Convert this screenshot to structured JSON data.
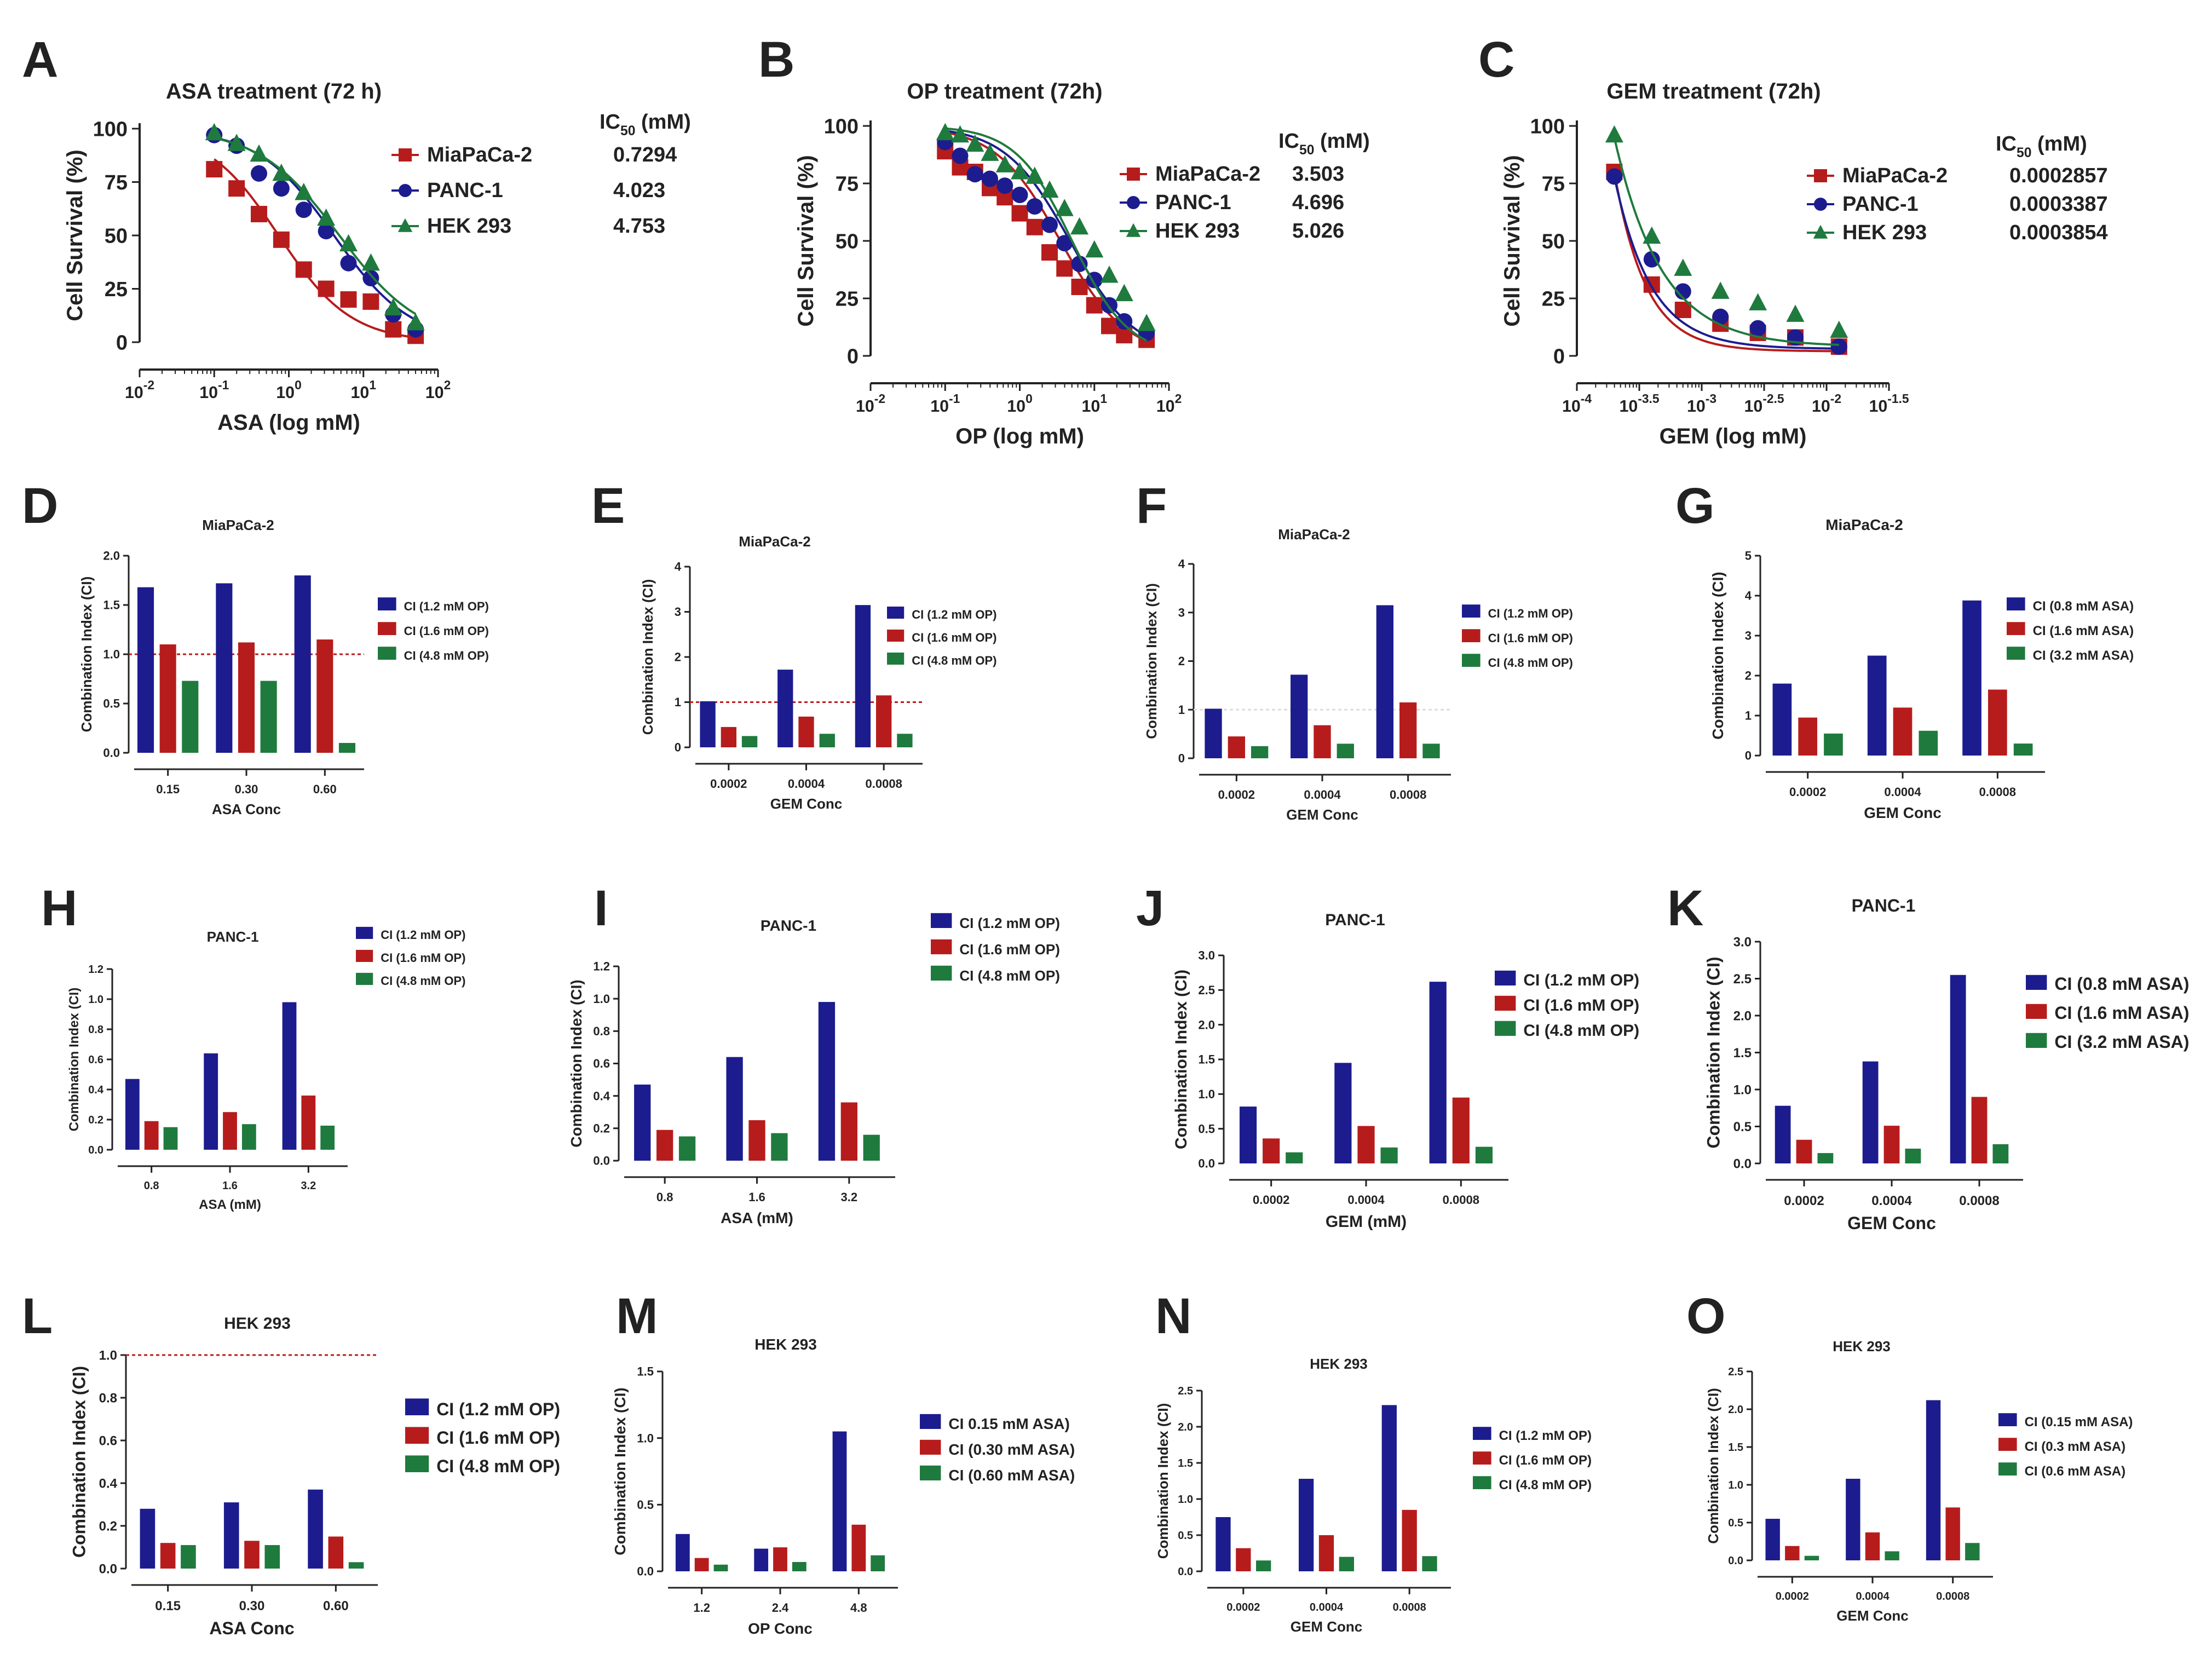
{
  "colors": {
    "red": "#b71c1c",
    "blue": "#1c1c8f",
    "green": "#1f7a3e",
    "refline": "#b71c1c",
    "axis": "#222222"
  },
  "chart_data": [
    {
      "id": "A",
      "panel_label": "A",
      "type": "line",
      "title": "ASA treatment (72 h)",
      "xlabel": "ASA (log mM)",
      "ylabel": "Cell Survival (%)",
      "x_scale": "log10",
      "xlim_log": [
        -2,
        2
      ],
      "x_ticks": [
        {
          "base": "10",
          "exp": "-2"
        },
        {
          "base": "10",
          "exp": "-1"
        },
        {
          "base": "10",
          "exp": "0"
        },
        {
          "base": "10",
          "exp": "1"
        },
        {
          "base": "10",
          "exp": "2"
        }
      ],
      "ylim": [
        0,
        100
      ],
      "y_ticks": [
        "0",
        "25",
        "50",
        "75",
        "100"
      ],
      "ic50_header": "IC",
      "ic50_sub": "50",
      "ic50_unit": " (mM)",
      "series": [
        {
          "name": "MiaPaCa-2",
          "ic50": "0.7294",
          "marker": "square",
          "color": "#b71c1c",
          "x_log": [
            -1,
            -0.7,
            -0.4,
            -0.1,
            0.2,
            0.5,
            0.8,
            1.1,
            1.4,
            1.7
          ],
          "y": [
            81,
            72,
            60,
            48,
            34,
            25,
            20,
            19,
            6,
            3
          ],
          "fit": {
            "ic50_log": -0.137,
            "hill": 0.9
          }
        },
        {
          "name": "PANC-1",
          "ic50": "4.023",
          "marker": "circle",
          "color": "#1c1c8f",
          "x_log": [
            -1,
            -0.7,
            -0.4,
            -0.1,
            0.2,
            0.5,
            0.8,
            1.1,
            1.4,
            1.7
          ],
          "y": [
            97,
            92,
            79,
            72,
            62,
            52,
            37,
            30,
            13,
            6
          ],
          "fit": {
            "ic50_log": 0.605,
            "hill": 0.85
          }
        },
        {
          "name": "HEK 293",
          "ic50": "4.753",
          "marker": "triangle",
          "color": "#1f7a3e",
          "x_log": [
            -1,
            -0.7,
            -0.4,
            -0.1,
            0.2,
            0.5,
            0.8,
            1.1,
            1.4,
            1.7
          ],
          "y": [
            98,
            93,
            88,
            79,
            70,
            58,
            46,
            37,
            16,
            9
          ],
          "fit": {
            "ic50_log": 0.677,
            "hill": 0.8
          }
        }
      ]
    },
    {
      "id": "B",
      "panel_label": "B",
      "type": "line",
      "title": "OP treatment (72h)",
      "xlabel": "OP (log mM)",
      "ylabel": "Cell Survival (%)",
      "x_scale": "log10",
      "xlim_log": [
        -2,
        2
      ],
      "x_ticks": [
        {
          "base": "10",
          "exp": "-2"
        },
        {
          "base": "10",
          "exp": "-1"
        },
        {
          "base": "10",
          "exp": "0"
        },
        {
          "base": "10",
          "exp": "1"
        },
        {
          "base": "10",
          "exp": "2"
        }
      ],
      "ylim": [
        0,
        100
      ],
      "y_ticks": [
        "0",
        "25",
        "50",
        "75",
        "100"
      ],
      "ic50_header": "IC",
      "ic50_sub": "50",
      "ic50_unit": " (mM)",
      "series": [
        {
          "name": "MiaPaCa-2",
          "ic50": "3.503",
          "marker": "square",
          "color": "#b71c1c",
          "x_log": [
            -1,
            -0.8,
            -0.6,
            -0.4,
            -0.2,
            0,
            0.2,
            0.4,
            0.6,
            0.8,
            1,
            1.2,
            1.4,
            1.7
          ],
          "y": [
            89,
            82,
            80,
            73,
            69,
            62,
            56,
            45,
            38,
            30,
            22,
            13,
            9,
            7
          ],
          "fit": {
            "ic50_log": 0.544,
            "hill": 1.0
          }
        },
        {
          "name": "PANC-1",
          "ic50": "4.696",
          "marker": "circle",
          "color": "#1c1c8f",
          "x_log": [
            -1,
            -0.8,
            -0.6,
            -0.4,
            -0.2,
            0,
            0.2,
            0.4,
            0.6,
            0.8,
            1,
            1.2,
            1.4,
            1.7
          ],
          "y": [
            93,
            87,
            79,
            77,
            74,
            70,
            65,
            57,
            49,
            40,
            33,
            22,
            15,
            10
          ],
          "fit": {
            "ic50_log": 0.672,
            "hill": 1.0
          }
        },
        {
          "name": "HEK 293",
          "ic50": "5.026",
          "marker": "triangle",
          "color": "#1f7a3e",
          "x_log": [
            -1,
            -0.8,
            -0.6,
            -0.4,
            -0.2,
            0,
            0.2,
            0.4,
            0.6,
            0.8,
            1,
            1.2,
            1.4,
            1.7
          ],
          "y": [
            97,
            96,
            92,
            88,
            83,
            80,
            78,
            72,
            64,
            56,
            46,
            35,
            27,
            14
          ],
          "fit": {
            "ic50_log": 0.701,
            "hill": 1.15
          }
        }
      ]
    },
    {
      "id": "C",
      "panel_label": "C",
      "type": "line",
      "title": "GEM treatment (72h)",
      "xlabel": "GEM (log mM)",
      "ylabel": "Cell Survival (%)",
      "x_scale": "log10",
      "xlim_log": [
        -4,
        -1.5
      ],
      "x_ticks": [
        {
          "base": "10",
          "exp": "-4"
        },
        {
          "base": "10",
          "exp": "-3.5"
        },
        {
          "base": "10",
          "exp": "-3"
        },
        {
          "base": "10",
          "exp": "-2.5"
        },
        {
          "base": "10",
          "exp": "-2"
        },
        {
          "base": "10",
          "exp": "-1.5"
        }
      ],
      "ylim": [
        0,
        100
      ],
      "y_ticks": [
        "0",
        "25",
        "50",
        "75",
        "100"
      ],
      "ic50_header": "IC",
      "ic50_sub": "50",
      "ic50_unit": " (mM)",
      "series": [
        {
          "name": "MiaPaCa-2",
          "ic50": "0.0002857",
          "marker": "square",
          "color": "#b71c1c",
          "x_log": [
            -3.7,
            -3.4,
            -3.15,
            -2.85,
            -2.55,
            -2.25,
            -1.9
          ],
          "y": [
            80,
            31,
            20,
            14,
            10,
            8,
            4
          ],
          "fit": {
            "type": "exp",
            "y0": 80,
            "plateau": 2,
            "k": 1.72,
            "x0": -3.7
          }
        },
        {
          "name": "PANC-1",
          "ic50": "0.0003387",
          "marker": "circle",
          "color": "#1c1c8f",
          "x_log": [
            -3.7,
            -3.4,
            -3.15,
            -2.85,
            -2.55,
            -2.25,
            -1.9
          ],
          "y": [
            78,
            42,
            28,
            17,
            12,
            8,
            4
          ],
          "fit": {
            "type": "exp",
            "y0": 78,
            "plateau": 3,
            "k": 1.48,
            "x0": -3.7
          }
        },
        {
          "name": "HEK 293",
          "ic50": "0.0003854",
          "marker": "triangle",
          "color": "#1f7a3e",
          "x_log": [
            -3.7,
            -3.4,
            -3.15,
            -2.85,
            -2.55,
            -2.25,
            -1.9
          ],
          "y": [
            96,
            52,
            38,
            28,
            23,
            18,
            11
          ],
          "fit": {
            "type": "exp",
            "y0": 95,
            "plateau": 4,
            "k": 1.15,
            "x0": -3.7
          }
        }
      ]
    },
    {
      "id": "D",
      "panel_label": "D",
      "type": "bar",
      "title": "MiaPaCa-2",
      "xlabel": "ASA Conc",
      "ylabel": "Combination Index (CI)",
      "categories": [
        "0.15",
        "0.30",
        "0.60"
      ],
      "ylim": [
        0,
        2
      ],
      "y_ticks": [
        "0.0",
        "0.5",
        "1.0",
        "1.5",
        "2.0"
      ],
      "refline": 1.0,
      "series": [
        {
          "name": "CI (1.2 mM OP)",
          "values": [
            1.68,
            1.72,
            1.8
          ]
        },
        {
          "name": "CI (1.6 mM OP)",
          "values": [
            1.1,
            1.12,
            1.15
          ]
        },
        {
          "name": "CI (4.8 mM OP)",
          "values": [
            0.73,
            0.73,
            0.1
          ]
        }
      ]
    },
    {
      "id": "E",
      "panel_label": "E",
      "type": "bar",
      "title": "MiaPaCa-2",
      "xlabel": "GEM Conc",
      "ylabel": "Combination Index (CI)",
      "categories": [
        "0.0002",
        "0.0004",
        "0.0008"
      ],
      "ylim": [
        0,
        4
      ],
      "y_ticks": [
        "0",
        "1",
        "2",
        "3",
        "4"
      ],
      "refline": 1.0,
      "series": [
        {
          "name": "CI (1.2 mM OP)",
          "values": [
            1.02,
            1.72,
            3.15
          ]
        },
        {
          "name": "CI (1.6 mM OP)",
          "values": [
            0.45,
            0.68,
            1.15
          ]
        },
        {
          "name": "CI (4.8 mM OP)",
          "values": [
            0.25,
            0.3,
            0.3
          ]
        }
      ]
    },
    {
      "id": "F",
      "panel_label": "F",
      "type": "bar",
      "title": "MiaPaCa-2",
      "xlabel": "GEM Conc",
      "ylabel": "Combination Index (CI)",
      "categories": [
        "0.0002",
        "0.0004",
        "0.0008"
      ],
      "ylim": [
        0,
        4
      ],
      "y_ticks": [
        "0",
        "1",
        "2",
        "3",
        "4"
      ],
      "refline": 1.0,
      "refline_faint": true,
      "series": [
        {
          "name": "CI (1.2 mM OP)",
          "values": [
            1.02,
            1.72,
            3.15
          ]
        },
        {
          "name": "CI (1.6 mM OP)",
          "values": [
            0.45,
            0.68,
            1.15
          ]
        },
        {
          "name": "CI (4.8 mM OP)",
          "values": [
            0.25,
            0.3,
            0.3
          ]
        }
      ]
    },
    {
      "id": "G",
      "panel_label": "G",
      "type": "bar",
      "title": "MiaPaCa-2",
      "xlabel": "GEM Conc",
      "ylabel": "Combination Index (CI)",
      "categories": [
        "0.0002",
        "0.0004",
        "0.0008"
      ],
      "ylim": [
        0,
        5
      ],
      "y_ticks": [
        "0",
        "1",
        "2",
        "3",
        "4",
        "5"
      ],
      "series": [
        {
          "name": "CI (0.8 mM ASA)",
          "values": [
            1.8,
            2.5,
            3.88
          ]
        },
        {
          "name": "CI (1.6 mM ASA)",
          "values": [
            0.95,
            1.2,
            1.65
          ]
        },
        {
          "name": "CI (3.2 mM ASA)",
          "values": [
            0.55,
            0.62,
            0.3
          ]
        }
      ]
    },
    {
      "id": "H",
      "panel_label": "H",
      "type": "bar",
      "title": "PANC-1",
      "xlabel": "ASA (mM)",
      "ylabel": "Combination Index (CI)",
      "categories": [
        "0.8",
        "1.6",
        "3.2"
      ],
      "ylim": [
        0,
        1.2
      ],
      "y_ticks": [
        "0.0",
        "0.2",
        "0.4",
        "0.6",
        "0.8",
        "1.0",
        "1.2"
      ],
      "series": [
        {
          "name": "CI (1.2 mM OP)",
          "values": [
            0.47,
            0.64,
            0.98
          ]
        },
        {
          "name": "CI (1.6 mM OP)",
          "values": [
            0.19,
            0.25,
            0.36
          ]
        },
        {
          "name": "CI (4.8 mM OP)",
          "values": [
            0.15,
            0.17,
            0.16
          ]
        }
      ]
    },
    {
      "id": "I",
      "panel_label": "I",
      "type": "bar",
      "title": "PANC-1",
      "xlabel": "ASA (mM)",
      "ylabel": "Combination Index (CI)",
      "categories": [
        "0.8",
        "1.6",
        "3.2"
      ],
      "ylim": [
        0,
        1.2
      ],
      "y_ticks": [
        "0.0",
        "0.2",
        "0.4",
        "0.6",
        "0.8",
        "1.0",
        "1.2"
      ],
      "series": [
        {
          "name": "CI (1.2 mM OP)",
          "values": [
            0.47,
            0.64,
            0.98
          ]
        },
        {
          "name": "CI (1.6 mM OP)",
          "values": [
            0.19,
            0.25,
            0.36
          ]
        },
        {
          "name": "CI (4.8 mM OP)",
          "values": [
            0.15,
            0.17,
            0.16
          ]
        }
      ]
    },
    {
      "id": "J",
      "panel_label": "J",
      "type": "bar",
      "title": "PANC-1",
      "xlabel": "GEM (mM)",
      "ylabel": "Combination Index (CI)",
      "categories": [
        "0.0002",
        "0.0004",
        "0.0008"
      ],
      "ylim": [
        0,
        3
      ],
      "y_ticks": [
        "0.0",
        "0.5",
        "1.0",
        "1.5",
        "2.0",
        "2.5",
        "3.0"
      ],
      "series": [
        {
          "name": "CI (1.2 mM OP)",
          "values": [
            0.82,
            1.45,
            2.62
          ]
        },
        {
          "name": "CI (1.6 mM OP)",
          "values": [
            0.36,
            0.54,
            0.95
          ]
        },
        {
          "name": "CI (4.8 mM OP)",
          "values": [
            0.16,
            0.23,
            0.24
          ]
        }
      ]
    },
    {
      "id": "K",
      "panel_label": "K",
      "type": "bar",
      "title": "PANC-1",
      "xlabel": "GEM Conc",
      "ylabel": "Combination Index (CI)",
      "categories": [
        "0.0002",
        "0.0004",
        "0.0008"
      ],
      "ylim": [
        0,
        3
      ],
      "y_ticks": [
        "0.0",
        "0.5",
        "1.0",
        "1.5",
        "2.0",
        "2.5",
        "3.0"
      ],
      "series": [
        {
          "name": "CI (0.8 mM ASA)",
          "values": [
            0.78,
            1.38,
            2.55
          ]
        },
        {
          "name": "CI (1.6 mM ASA)",
          "values": [
            0.32,
            0.51,
            0.9
          ]
        },
        {
          "name": "CI (3.2 mM ASA)",
          "values": [
            0.14,
            0.2,
            0.26
          ]
        }
      ]
    },
    {
      "id": "L",
      "panel_label": "L",
      "type": "bar",
      "title": "HEK 293",
      "xlabel": "ASA Conc",
      "ylabel": "Combination Index (CI)",
      "categories": [
        "0.15",
        "0.30",
        "0.60"
      ],
      "ylim": [
        0,
        1
      ],
      "y_ticks": [
        "0.0",
        "0.2",
        "0.4",
        "0.6",
        "0.8",
        "1.0"
      ],
      "refline": 1.0,
      "series": [
        {
          "name": "CI (1.2 mM OP)",
          "values": [
            0.28,
            0.31,
            0.37
          ]
        },
        {
          "name": "CI (1.6 mM OP)",
          "values": [
            0.12,
            0.13,
            0.15
          ]
        },
        {
          "name": "CI (4.8 mM OP)",
          "values": [
            0.11,
            0.11,
            0.03
          ]
        }
      ]
    },
    {
      "id": "M",
      "panel_label": "M",
      "type": "bar",
      "title": "HEK 293",
      "xlabel": "OP Conc",
      "ylabel": "Combination Index (CI)",
      "categories": [
        "1.2",
        "2.4",
        "4.8"
      ],
      "ylim": [
        0,
        1.5
      ],
      "y_ticks": [
        "0.0",
        "0.5",
        "1.0",
        "1.5"
      ],
      "series": [
        {
          "name": "CI 0.15 mM ASA)",
          "values": [
            0.28,
            0.17,
            1.05
          ]
        },
        {
          "name": "CI (0.30 mM ASA)",
          "values": [
            0.1,
            0.18,
            0.35
          ]
        },
        {
          "name": "CI (0.60 mM ASA)",
          "values": [
            0.05,
            0.07,
            0.12
          ]
        }
      ]
    },
    {
      "id": "N",
      "panel_label": "N",
      "type": "bar",
      "title": "HEK 293",
      "xlabel": "GEM Conc",
      "ylabel": "Combination Index (CI)",
      "categories": [
        "0.0002",
        "0.0004",
        "0.0008"
      ],
      "ylim": [
        0,
        2.5
      ],
      "y_ticks": [
        "0.0",
        "0.5",
        "1.0",
        "1.5",
        "2.0",
        "2.5"
      ],
      "series": [
        {
          "name": "CI (1.2 mM OP)",
          "values": [
            0.75,
            1.28,
            2.3
          ]
        },
        {
          "name": "CI (1.6 mM OP)",
          "values": [
            0.32,
            0.5,
            0.85
          ]
        },
        {
          "name": "CI (4.8 mM OP)",
          "values": [
            0.15,
            0.2,
            0.21
          ]
        }
      ]
    },
    {
      "id": "O",
      "panel_label": "O",
      "type": "bar",
      "title": "HEK 293",
      "xlabel": "GEM Conc",
      "ylabel": "Combination Index (CI)",
      "categories": [
        "0.0002",
        "0.0004",
        "0.0008"
      ],
      "ylim": [
        0,
        2.5
      ],
      "y_ticks": [
        "0.0",
        "0.5",
        "1.0",
        "1.5",
        "2.0",
        "2.5"
      ],
      "series": [
        {
          "name": "CI (0.15 mM ASA)",
          "values": [
            0.55,
            1.08,
            2.12
          ]
        },
        {
          "name": "CI (0.3 mM ASA)",
          "values": [
            0.19,
            0.37,
            0.7
          ]
        },
        {
          "name": "CI (0.6 mM ASA)",
          "values": [
            0.06,
            0.12,
            0.23
          ]
        }
      ]
    }
  ]
}
